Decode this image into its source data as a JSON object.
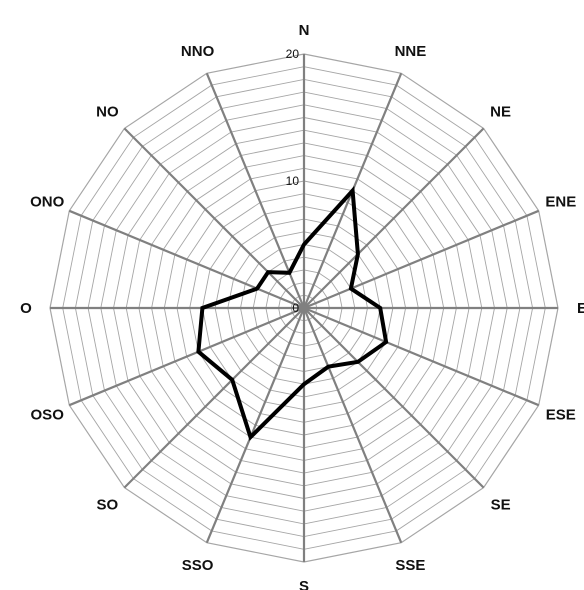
{
  "chart_data": {
    "type": "radar",
    "directions": [
      "N",
      "NNE",
      "NE",
      "ENE",
      "E",
      "ESE",
      "SE",
      "SSE",
      "S",
      "SSO",
      "SO",
      "OSO",
      "O",
      "ONO",
      "NO",
      "NNO"
    ],
    "series": [
      {
        "values": [
          5,
          10,
          6,
          4,
          6,
          7,
          6,
          5,
          6,
          11,
          8,
          9,
          8,
          4,
          4,
          3
        ]
      }
    ],
    "rlim": [
      0,
      20
    ],
    "tick_labels": [
      "0",
      "10",
      "20"
    ],
    "grid": true,
    "grid_ring_step": 1,
    "spoke_color": "#808080",
    "grid_color": "#a6a6a6",
    "series_color": "#000000"
  }
}
